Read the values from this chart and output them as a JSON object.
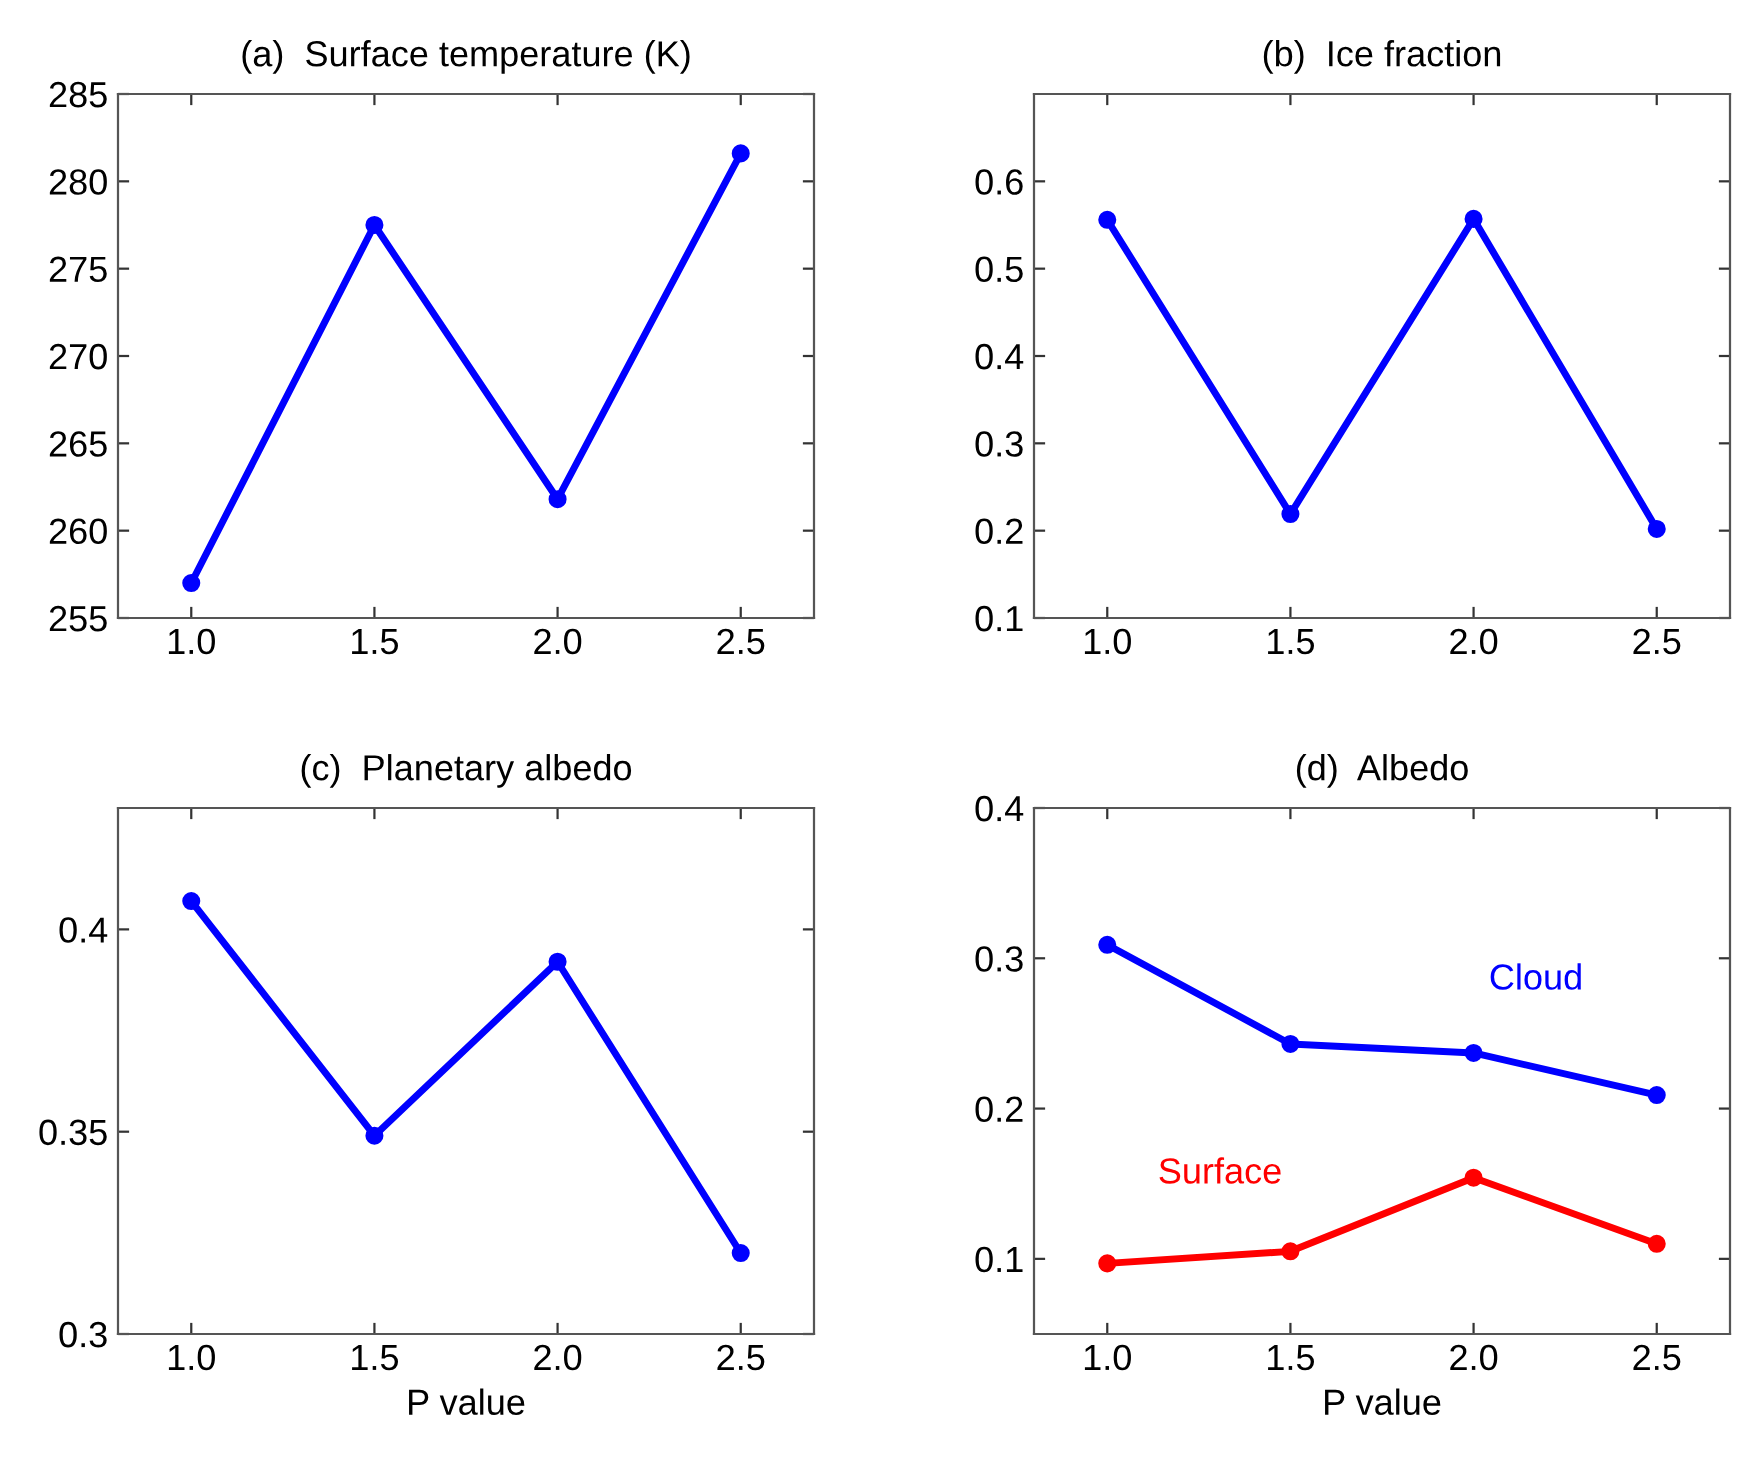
{
  "chart_data": [
    {
      "type": "line",
      "title": "(a)  Surface temperature (K)",
      "x": [
        1.0,
        1.5,
        2.0,
        2.5
      ],
      "xlim": [
        0.8,
        2.7
      ],
      "xticks": [
        {
          "value": 1.0,
          "label": "1.0"
        },
        {
          "value": 1.5,
          "label": "1.5"
        },
        {
          "value": 2.0,
          "label": "2.0"
        },
        {
          "value": 2.5,
          "label": "2.5"
        }
      ],
      "ylim": [
        255,
        285
      ],
      "yticks": [
        255,
        260,
        265,
        270,
        275,
        280,
        285
      ],
      "marker": "circle",
      "grid": false,
      "legend": false,
      "series": [
        {
          "color": "#0000ff",
          "values": [
            257.0,
            277.5,
            261.8,
            281.6
          ]
        }
      ]
    },
    {
      "type": "line",
      "title": "(b)  Ice fraction",
      "x": [
        1.0,
        1.5,
        2.0,
        2.5
      ],
      "xlim": [
        0.8,
        2.7
      ],
      "xticks": [
        {
          "value": 1.0,
          "label": "1.0"
        },
        {
          "value": 1.5,
          "label": "1.5"
        },
        {
          "value": 2.0,
          "label": "2.0"
        },
        {
          "value": 2.5,
          "label": "2.5"
        }
      ],
      "ylim": [
        0.1,
        0.7
      ],
      "yticks": [
        0.1,
        0.2,
        0.3,
        0.4,
        0.5,
        0.6
      ],
      "marker": "circle",
      "grid": false,
      "legend": false,
      "series": [
        {
          "color": "#0000ff",
          "values": [
            0.556,
            0.219,
            0.557,
            0.202
          ]
        }
      ]
    },
    {
      "type": "line",
      "title": "(c)  Planetary albedo",
      "xlabel": "P value",
      "x": [
        1.0,
        1.5,
        2.0,
        2.5
      ],
      "xlim": [
        0.8,
        2.7
      ],
      "xticks": [
        {
          "value": 1.0,
          "label": "1.0"
        },
        {
          "value": 1.5,
          "label": "1.5"
        },
        {
          "value": 2.0,
          "label": "2.0"
        },
        {
          "value": 2.5,
          "label": "2.5"
        }
      ],
      "ylim": [
        0.3,
        0.43
      ],
      "yticks": [
        0.3,
        0.35,
        0.4
      ],
      "marker": "circle",
      "grid": false,
      "legend": false,
      "series": [
        {
          "color": "#0000ff",
          "values": [
            0.407,
            0.349,
            0.392,
            0.32
          ]
        }
      ]
    },
    {
      "type": "line",
      "title": "(d)  Albedo",
      "xlabel": "P value",
      "x": [
        1.0,
        1.5,
        2.0,
        2.5
      ],
      "xlim": [
        0.8,
        2.7
      ],
      "xticks": [
        {
          "value": 1.0,
          "label": "1.0"
        },
        {
          "value": 1.5,
          "label": "1.5"
        },
        {
          "value": 2.0,
          "label": "2.0"
        },
        {
          "value": 2.5,
          "label": "2.5"
        }
      ],
      "ylim": [
        0.05,
        0.4
      ],
      "yticks": [
        0.1,
        0.2,
        0.3,
        0.4
      ],
      "marker": "circle",
      "grid": false,
      "legend": false,
      "series": [
        {
          "name": "Cloud",
          "color": "#0000ff",
          "values": [
            0.309,
            0.243,
            0.237,
            0.209
          ]
        },
        {
          "name": "Surface",
          "color": "#ff0000",
          "values": [
            0.097,
            0.105,
            0.154,
            0.11
          ]
        }
      ]
    }
  ]
}
